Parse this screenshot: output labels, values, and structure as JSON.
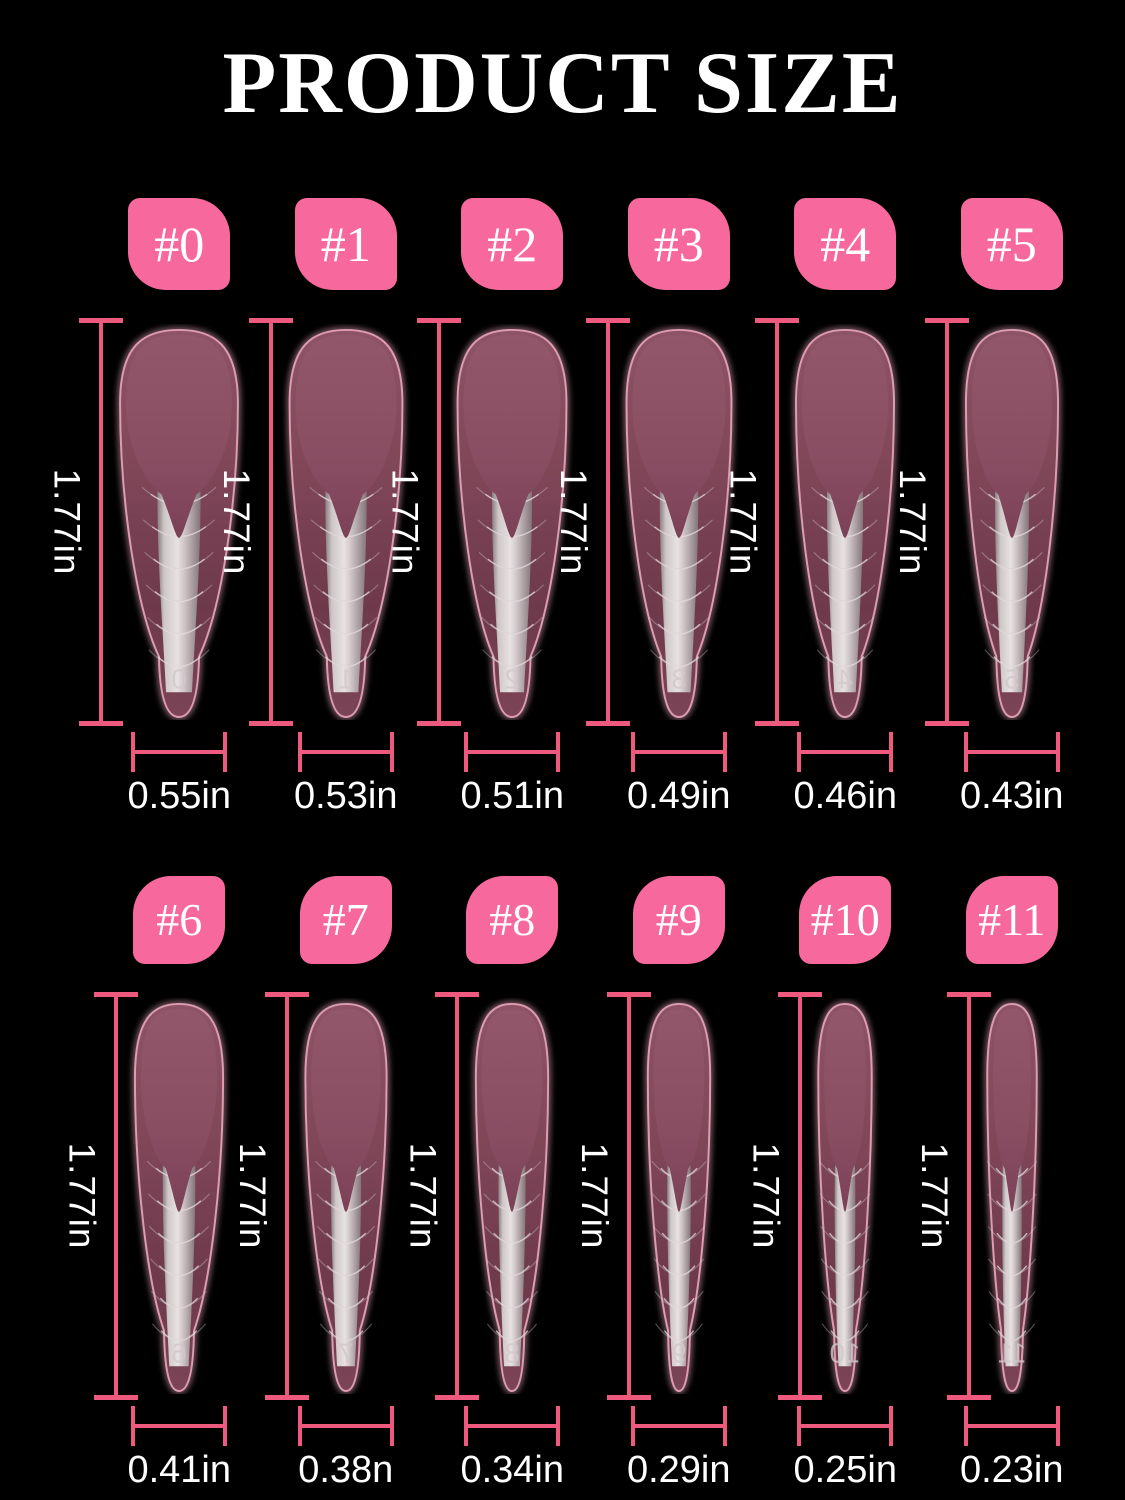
{
  "title": "PRODUCT SIZE",
  "colors": {
    "background": "#000000",
    "chip_pink": "#f7699d",
    "measure_line_pink": "#ee5a7d",
    "text_white": "#ffffff",
    "nail_body_mauve": "#83485b",
    "nail_tip_mauve": "#8d5166",
    "nail_edge_glow": "#e2a2b6",
    "inner_form_gray": "#d8d1d2"
  },
  "rows": [
    {
      "sizes": [
        {
          "label": "#0",
          "height": "1.77in",
          "width": "0.55in",
          "digit": "0"
        },
        {
          "label": "#1",
          "height": "1.77in",
          "width": "0.53in",
          "digit": "1"
        },
        {
          "label": "#2",
          "height": "1.77in",
          "width": "0.51in",
          "digit": "2"
        },
        {
          "label": "#3",
          "height": "1.77in",
          "width": "0.49in",
          "digit": "3"
        },
        {
          "label": "#4",
          "height": "1.77in",
          "width": "0.46in",
          "digit": "4"
        },
        {
          "label": "#5",
          "height": "1.77in",
          "width": "0.43in",
          "digit": "5"
        }
      ]
    },
    {
      "sizes": [
        {
          "label": "#6",
          "height": "1.77in",
          "width": "0.41in",
          "digit": "6"
        },
        {
          "label": "#7",
          "height": "1.77in",
          "width": "0.38n",
          "digit": "7"
        },
        {
          "label": "#8",
          "height": "1.77in",
          "width": "0.34in",
          "digit": "8"
        },
        {
          "label": "#9",
          "height": "1.77in",
          "width": "0.29in",
          "digit": "9"
        },
        {
          "label": "#10",
          "height": "1.77in",
          "width": "0.25in",
          "digit": "10"
        },
        {
          "label": "#11",
          "height": "1.77in",
          "width": "0.23in",
          "digit": "11"
        }
      ]
    }
  ]
}
